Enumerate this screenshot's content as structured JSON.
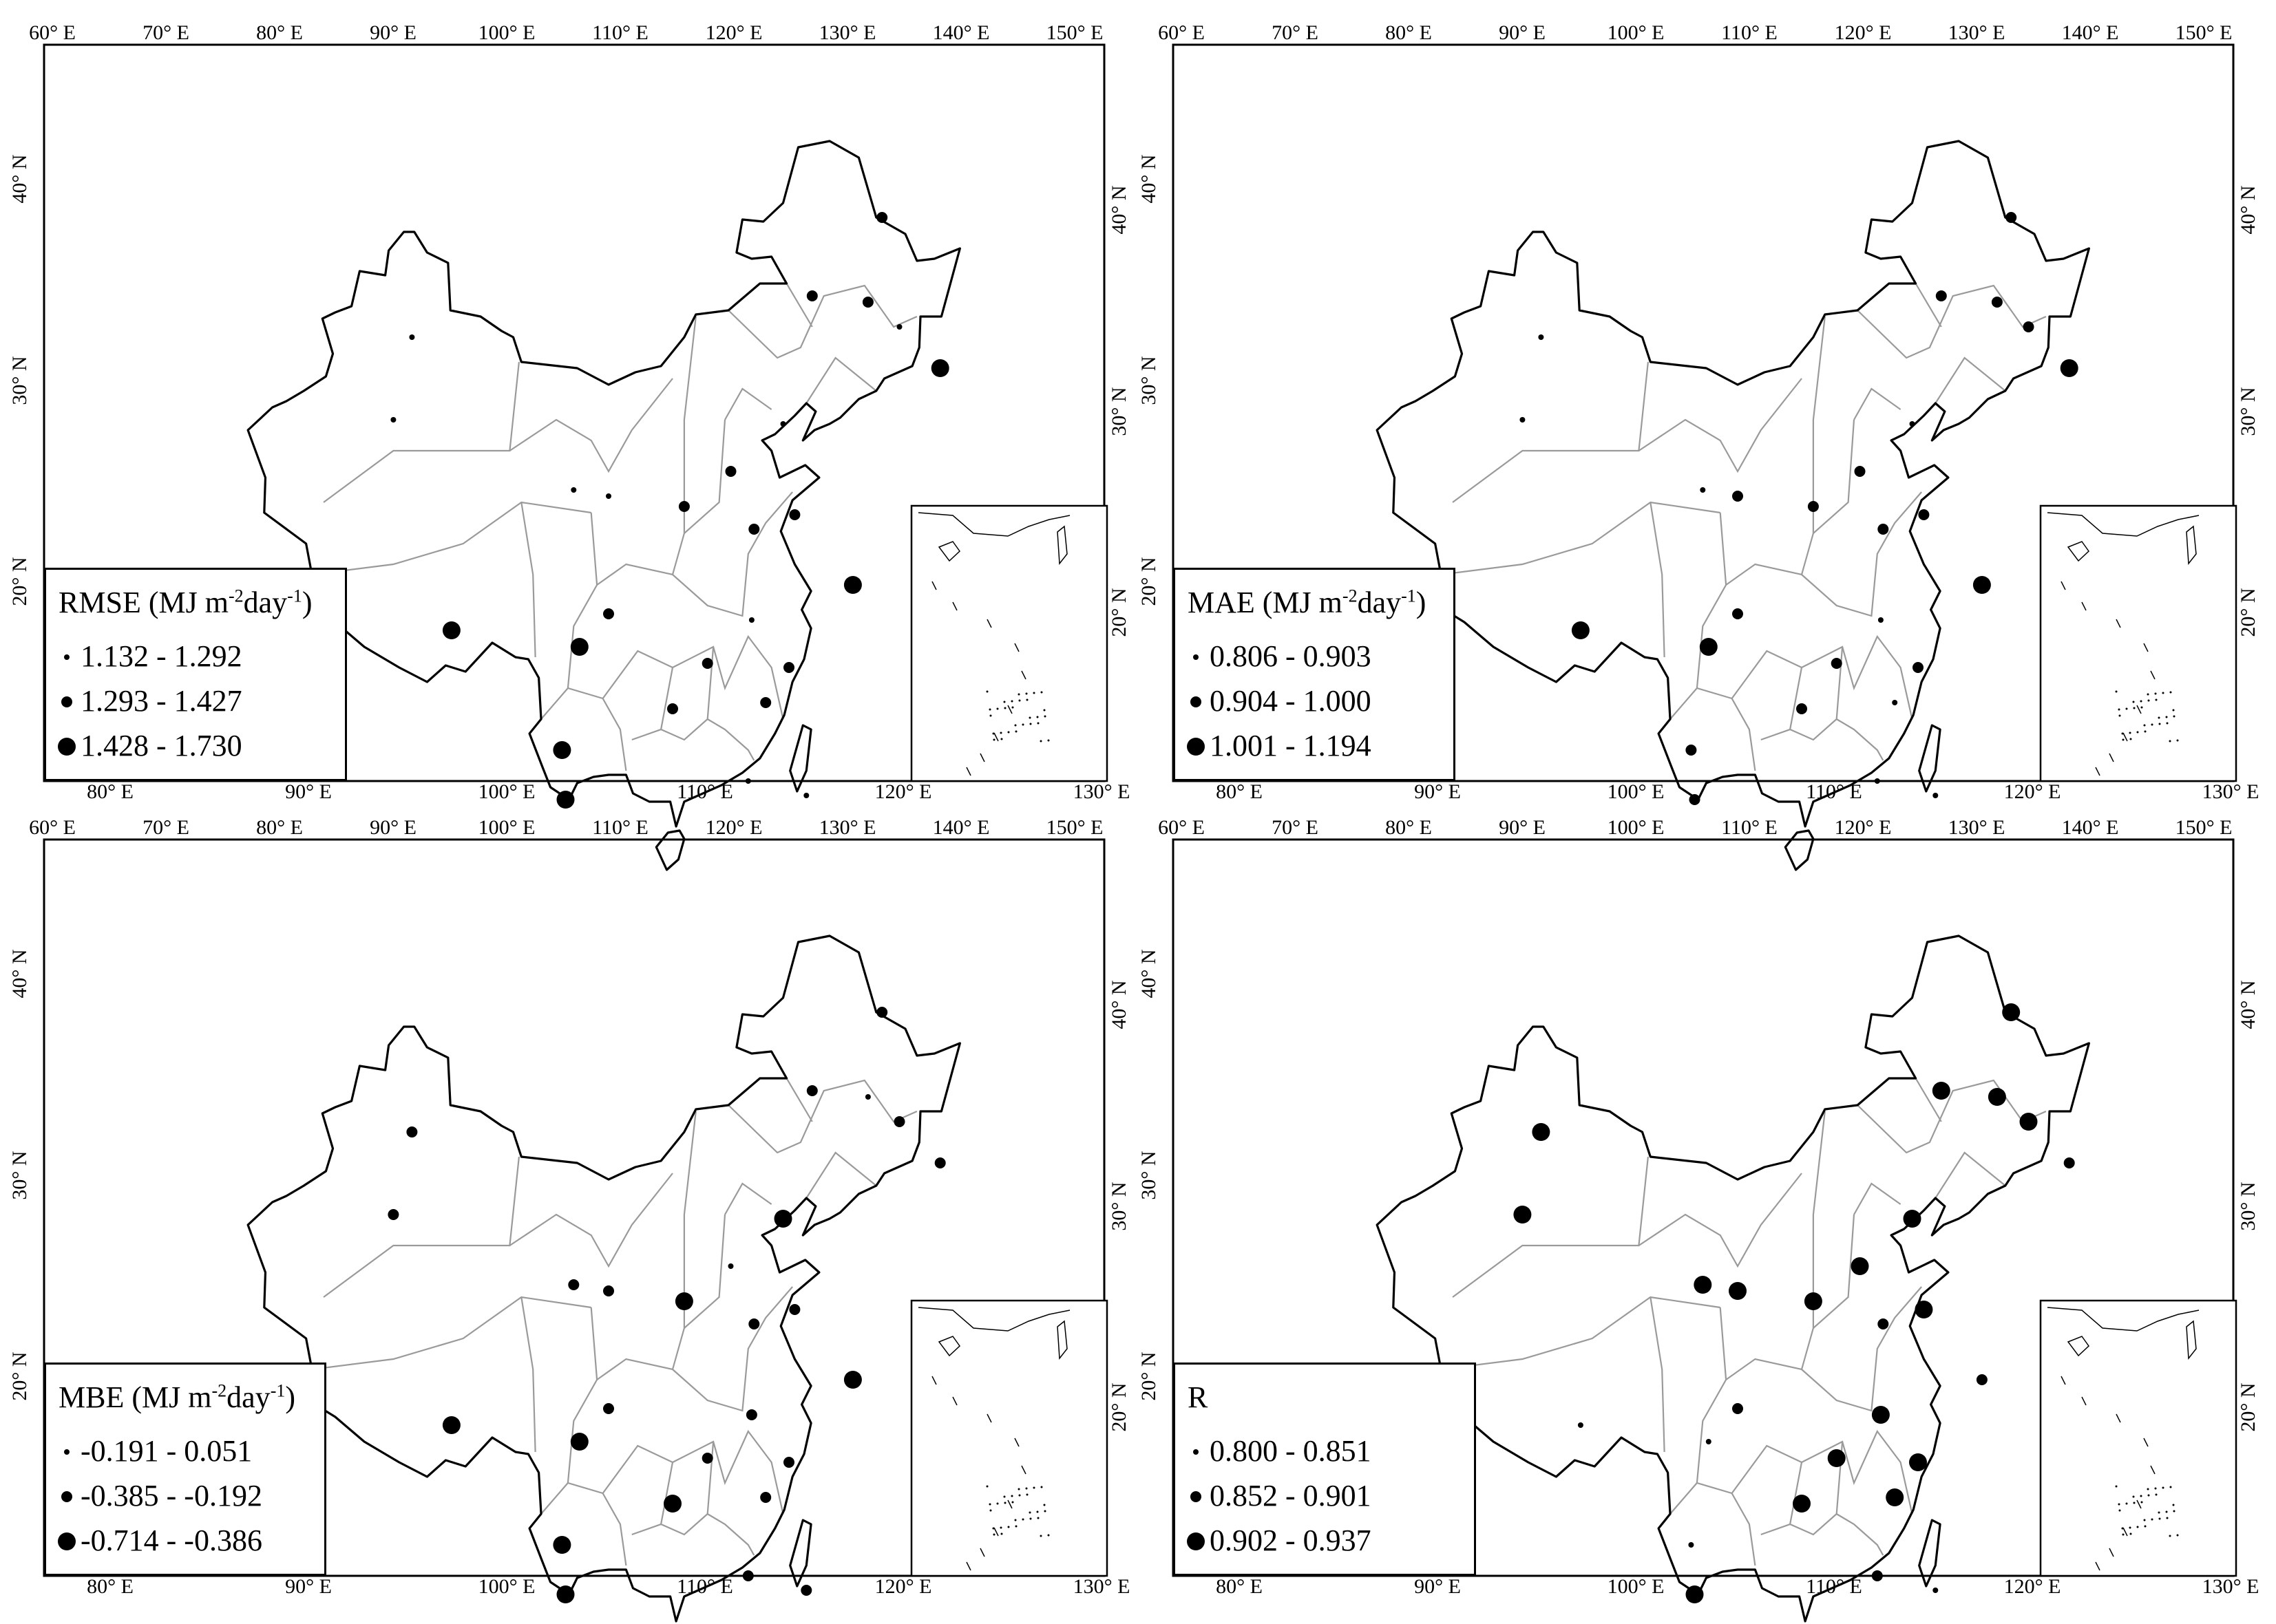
{
  "maps": [
    {
      "id": "rmse",
      "legend": {
        "title": "RMSE (MJ m",
        "unit_exp1": "-2",
        "unit_mid": "day",
        "unit_exp2": "-1",
        "unit_close": ")",
        "classes": [
          "1.132 - 1.292",
          "1.293 - 1.427",
          "1.428 - 1.730"
        ]
      },
      "stations": [
        {
          "lon": 128.0,
          "lat": 49.8,
          "c": 2
        },
        {
          "lon": 87.6,
          "lat": 44.0,
          "c": 1
        },
        {
          "lon": 122.0,
          "lat": 46.0,
          "c": 2
        },
        {
          "lon": 126.8,
          "lat": 45.7,
          "c": 2
        },
        {
          "lon": 129.5,
          "lat": 44.5,
          "c": 1
        },
        {
          "lon": 133.0,
          "lat": 42.5,
          "c": 3
        },
        {
          "lon": 86.0,
          "lat": 40.0,
          "c": 1
        },
        {
          "lon": 119.5,
          "lat": 39.8,
          "c": 1
        },
        {
          "lon": 115.0,
          "lat": 37.5,
          "c": 2
        },
        {
          "lon": 101.5,
          "lat": 36.6,
          "c": 1
        },
        {
          "lon": 104.5,
          "lat": 36.3,
          "c": 1
        },
        {
          "lon": 111.0,
          "lat": 35.8,
          "c": 2
        },
        {
          "lon": 120.5,
          "lat": 35.4,
          "c": 2
        },
        {
          "lon": 117.0,
          "lat": 34.7,
          "c": 2
        },
        {
          "lon": 125.5,
          "lat": 32.0,
          "c": 3
        },
        {
          "lon": 104.5,
          "lat": 30.6,
          "c": 2
        },
        {
          "lon": 116.8,
          "lat": 30.3,
          "c": 1
        },
        {
          "lon": 91.0,
          "lat": 29.8,
          "c": 3
        },
        {
          "lon": 102.0,
          "lat": 29.0,
          "c": 3
        },
        {
          "lon": 113.0,
          "lat": 28.2,
          "c": 2
        },
        {
          "lon": 120.0,
          "lat": 28.0,
          "c": 2
        },
        {
          "lon": 110.0,
          "lat": 26.0,
          "c": 2
        },
        {
          "lon": 118.0,
          "lat": 26.3,
          "c": 2
        },
        {
          "lon": 100.5,
          "lat": 24.0,
          "c": 3
        },
        {
          "lon": 116.5,
          "lat": 22.5,
          "c": 1
        },
        {
          "lon": 100.8,
          "lat": 21.6,
          "c": 3
        },
        {
          "lon": 121.5,
          "lat": 21.8,
          "c": 1
        }
      ]
    },
    {
      "id": "mae",
      "legend": {
        "title": "MAE (MJ m",
        "unit_exp1": "-2",
        "unit_mid": "day",
        "unit_exp2": "-1",
        "unit_close": ")",
        "classes": [
          "0.806 - 0.903",
          "0.904 - 1.000",
          "1.001 - 1.194"
        ]
      },
      "stations": [
        {
          "lon": 128.0,
          "lat": 49.8,
          "c": 2
        },
        {
          "lon": 87.6,
          "lat": 44.0,
          "c": 1
        },
        {
          "lon": 122.0,
          "lat": 46.0,
          "c": 2
        },
        {
          "lon": 126.8,
          "lat": 45.7,
          "c": 2
        },
        {
          "lon": 129.5,
          "lat": 44.5,
          "c": 2
        },
        {
          "lon": 133.0,
          "lat": 42.5,
          "c": 3
        },
        {
          "lon": 86.0,
          "lat": 40.0,
          "c": 1
        },
        {
          "lon": 119.5,
          "lat": 39.8,
          "c": 1
        },
        {
          "lon": 115.0,
          "lat": 37.5,
          "c": 2
        },
        {
          "lon": 101.5,
          "lat": 36.6,
          "c": 1
        },
        {
          "lon": 104.5,
          "lat": 36.3,
          "c": 2
        },
        {
          "lon": 111.0,
          "lat": 35.8,
          "c": 2
        },
        {
          "lon": 120.5,
          "lat": 35.4,
          "c": 2
        },
        {
          "lon": 117.0,
          "lat": 34.7,
          "c": 2
        },
        {
          "lon": 125.5,
          "lat": 32.0,
          "c": 3
        },
        {
          "lon": 104.5,
          "lat": 30.6,
          "c": 2
        },
        {
          "lon": 116.8,
          "lat": 30.3,
          "c": 1
        },
        {
          "lon": 91.0,
          "lat": 29.8,
          "c": 3
        },
        {
          "lon": 102.0,
          "lat": 29.0,
          "c": 3
        },
        {
          "lon": 113.0,
          "lat": 28.2,
          "c": 2
        },
        {
          "lon": 120.0,
          "lat": 28.0,
          "c": 2
        },
        {
          "lon": 110.0,
          "lat": 26.0,
          "c": 2
        },
        {
          "lon": 118.0,
          "lat": 26.3,
          "c": 1
        },
        {
          "lon": 100.5,
          "lat": 24.0,
          "c": 2
        },
        {
          "lon": 116.5,
          "lat": 22.5,
          "c": 1
        },
        {
          "lon": 100.8,
          "lat": 21.6,
          "c": 2
        },
        {
          "lon": 121.5,
          "lat": 21.8,
          "c": 1
        }
      ]
    },
    {
      "id": "mbe",
      "legend": {
        "title": "MBE (MJ m",
        "unit_exp1": "-2",
        "unit_mid": "day",
        "unit_exp2": "-1",
        "unit_close": ")",
        "classes": [
          "-0.191 - 0.051",
          "-0.385 - -0.192",
          "-0.714 - -0.386"
        ]
      },
      "stations": [
        {
          "lon": 128.0,
          "lat": 49.8,
          "c": 2
        },
        {
          "lon": 87.6,
          "lat": 44.0,
          "c": 2
        },
        {
          "lon": 122.0,
          "lat": 46.0,
          "c": 2
        },
        {
          "lon": 126.8,
          "lat": 45.7,
          "c": 1
        },
        {
          "lon": 129.5,
          "lat": 44.5,
          "c": 2
        },
        {
          "lon": 133.0,
          "lat": 42.5,
          "c": 2
        },
        {
          "lon": 86.0,
          "lat": 40.0,
          "c": 2
        },
        {
          "lon": 119.5,
          "lat": 39.8,
          "c": 3
        },
        {
          "lon": 115.0,
          "lat": 37.5,
          "c": 1
        },
        {
          "lon": 101.5,
          "lat": 36.6,
          "c": 2
        },
        {
          "lon": 104.5,
          "lat": 36.3,
          "c": 2
        },
        {
          "lon": 111.0,
          "lat": 35.8,
          "c": 3
        },
        {
          "lon": 120.5,
          "lat": 35.4,
          "c": 2
        },
        {
          "lon": 117.0,
          "lat": 34.7,
          "c": 2
        },
        {
          "lon": 125.5,
          "lat": 32.0,
          "c": 3
        },
        {
          "lon": 104.5,
          "lat": 30.6,
          "c": 2
        },
        {
          "lon": 116.8,
          "lat": 30.3,
          "c": 2
        },
        {
          "lon": 91.0,
          "lat": 29.8,
          "c": 3
        },
        {
          "lon": 102.0,
          "lat": 29.0,
          "c": 3
        },
        {
          "lon": 113.0,
          "lat": 28.2,
          "c": 2
        },
        {
          "lon": 120.0,
          "lat": 28.0,
          "c": 2
        },
        {
          "lon": 110.0,
          "lat": 26.0,
          "c": 3
        },
        {
          "lon": 118.0,
          "lat": 26.3,
          "c": 2
        },
        {
          "lon": 100.5,
          "lat": 24.0,
          "c": 3
        },
        {
          "lon": 116.5,
          "lat": 22.5,
          "c": 2
        },
        {
          "lon": 100.8,
          "lat": 21.6,
          "c": 3
        },
        {
          "lon": 121.5,
          "lat": 21.8,
          "c": 2
        }
      ]
    },
    {
      "id": "r",
      "legend": {
        "title": "R",
        "unit_exp1": "",
        "unit_mid": "",
        "unit_exp2": "",
        "unit_close": "",
        "classes": [
          "0.800 - 0.851",
          "0.852 - 0.901",
          "0.902 - 0.937"
        ]
      },
      "stations": [
        {
          "lon": 128.0,
          "lat": 49.8,
          "c": 3
        },
        {
          "lon": 87.6,
          "lat": 44.0,
          "c": 3
        },
        {
          "lon": 122.0,
          "lat": 46.0,
          "c": 3
        },
        {
          "lon": 126.8,
          "lat": 45.7,
          "c": 3
        },
        {
          "lon": 129.5,
          "lat": 44.5,
          "c": 3
        },
        {
          "lon": 133.0,
          "lat": 42.5,
          "c": 2
        },
        {
          "lon": 86.0,
          "lat": 40.0,
          "c": 3
        },
        {
          "lon": 119.5,
          "lat": 39.8,
          "c": 3
        },
        {
          "lon": 115.0,
          "lat": 37.5,
          "c": 3
        },
        {
          "lon": 101.5,
          "lat": 36.6,
          "c": 3
        },
        {
          "lon": 104.5,
          "lat": 36.3,
          "c": 3
        },
        {
          "lon": 111.0,
          "lat": 35.8,
          "c": 3
        },
        {
          "lon": 120.5,
          "lat": 35.4,
          "c": 3
        },
        {
          "lon": 117.0,
          "lat": 34.7,
          "c": 2
        },
        {
          "lon": 125.5,
          "lat": 32.0,
          "c": 2
        },
        {
          "lon": 104.5,
          "lat": 30.6,
          "c": 2
        },
        {
          "lon": 116.8,
          "lat": 30.3,
          "c": 3
        },
        {
          "lon": 91.0,
          "lat": 29.8,
          "c": 1
        },
        {
          "lon": 102.0,
          "lat": 29.0,
          "c": 1
        },
        {
          "lon": 113.0,
          "lat": 28.2,
          "c": 3
        },
        {
          "lon": 120.0,
          "lat": 28.0,
          "c": 3
        },
        {
          "lon": 110.0,
          "lat": 26.0,
          "c": 3
        },
        {
          "lon": 118.0,
          "lat": 26.3,
          "c": 3
        },
        {
          "lon": 100.5,
          "lat": 24.0,
          "c": 1
        },
        {
          "lon": 116.5,
          "lat": 22.5,
          "c": 2
        },
        {
          "lon": 100.8,
          "lat": 21.6,
          "c": 3
        },
        {
          "lon": 121.5,
          "lat": 21.8,
          "c": 1
        }
      ]
    }
  ],
  "top_ticks": [
    "60° E",
    "70° E",
    "80° E",
    "90° E",
    "100° E",
    "110° E",
    "120° E",
    "130° E",
    "140° E",
    "150° E"
  ],
  "bottom_ticks": [
    "80° E",
    "90° E",
    "100° E",
    "110° E",
    "120° E",
    "130° E"
  ],
  "left_ticks": [
    "40° N",
    "30° N",
    "20° N"
  ],
  "right_ticks": [
    "40° N",
    "30° N",
    "20° N"
  ],
  "colors": {
    "country": "#000000",
    "province": "#9a9a9a",
    "frame": "#000000",
    "station": "#000000"
  }
}
